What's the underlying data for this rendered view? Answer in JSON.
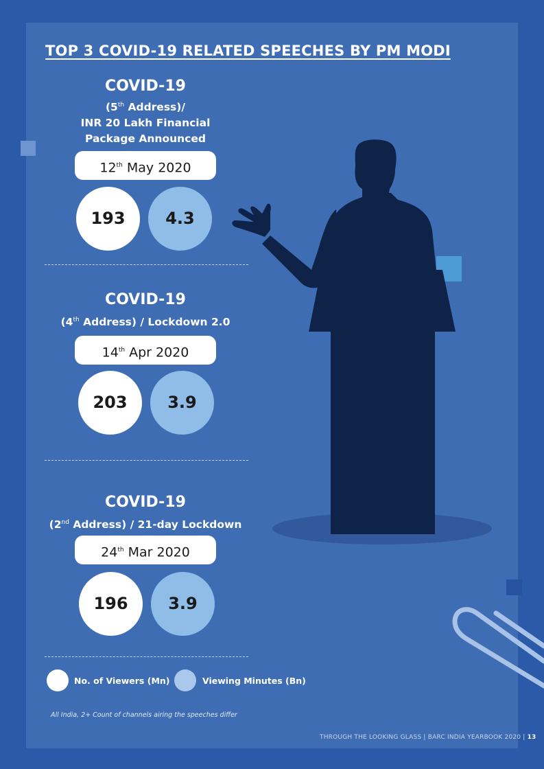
{
  "title": "TOP 3 COVID-19 RELATED SPEECHES BY PM MODI",
  "speeches": [
    {
      "heading": "COVID-19",
      "sub_lines": [
        "(5|th| Address)/",
        "INR 20 Lakh Financial",
        "Package Announced"
      ],
      "date_day": "12",
      "date_suffix": "th",
      "date_rest": " May 2020",
      "viewers": "193",
      "minutes": "4.3"
    },
    {
      "heading": "COVID-19",
      "sub_lines": [
        "(4|th| Address) / Lockdown 2.0"
      ],
      "date_day": "14",
      "date_suffix": "th",
      "date_rest": " Apr 2020",
      "viewers": "203",
      "minutes": "3.9"
    },
    {
      "heading": "COVID-19",
      "sub_lines": [
        "(2|nd| Address) / 21-day Lockdown"
      ],
      "date_day": "24",
      "date_suffix": "th",
      "date_rest": " Mar 2020",
      "viewers": "196",
      "minutes": "3.9"
    }
  ],
  "legend": {
    "viewers_label": "No. of Viewers (Mn)",
    "minutes_label": "Viewing Minutes (Bn)"
  },
  "note": "All India, 2+ Count of channels airing the speeches differ",
  "footer": {
    "text": "THROUGH THE LOOKING GLASS | BARC INDIA YEARBOOK 2020 | ",
    "page": "13"
  },
  "colors": {
    "background": "#2b5aa8",
    "panel": "#3e6db4",
    "silhouette": "#0f2348",
    "viewers_circle": "#ffffff",
    "minutes_circle": "#8fbde8"
  }
}
